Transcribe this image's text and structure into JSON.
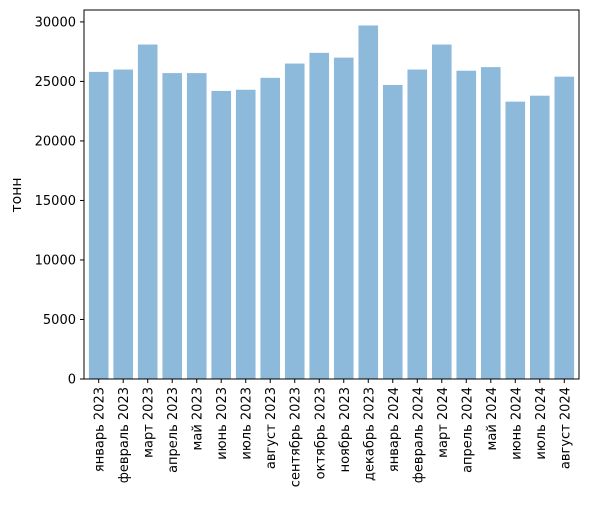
{
  "chart_data": {
    "type": "bar",
    "title": "",
    "xlabel": "",
    "ylabel": "тонн",
    "ylim": [
      0,
      31000
    ],
    "yticks": [
      0,
      5000,
      10000,
      15000,
      20000,
      25000,
      30000
    ],
    "categories": [
      "январь 2023",
      "февраль 2023",
      "март 2023",
      "апрель 2023",
      "май 2023",
      "июнь 2023",
      "июль 2023",
      "август 2023",
      "сентябрь 2023",
      "октябрь 2023",
      "ноябрь 2023",
      "декабрь 2023",
      "январь 2024",
      "февраль 2024",
      "март 2024",
      "апрель 2024",
      "май 2024",
      "июнь 2024",
      "июль 2024",
      "август 2024"
    ],
    "values": [
      25800,
      26000,
      28100,
      25700,
      25700,
      24200,
      24300,
      25300,
      26500,
      27400,
      27000,
      29700,
      24700,
      26000,
      28100,
      25900,
      26200,
      23300,
      23800,
      25400
    ],
    "bar_color": "#8db9da",
    "grid": false,
    "legend": "none"
  }
}
